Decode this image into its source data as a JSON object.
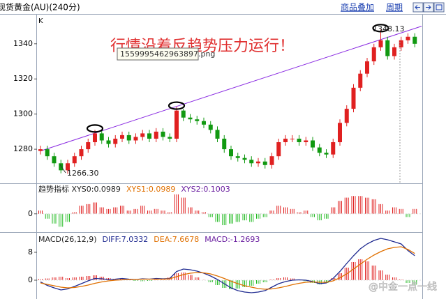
{
  "header": {
    "title": "现货黄金(AU)(240分)",
    "links": [
      "商品叠加",
      "周期"
    ]
  },
  "chart_data": [
    {
      "type": "candlestick",
      "axis_label": "K",
      "up_color": "#e02020",
      "down_color": "#119911",
      "ylim": [
        1261,
        1355
      ],
      "yticks": [
        1280,
        1300,
        1320,
        1340
      ],
      "open": [
        1279,
        1280,
        1276,
        1272,
        1268,
        1272,
        1276,
        1280,
        1284,
        1289,
        1285,
        1283,
        1286,
        1288,
        1285,
        1287,
        1289,
        1286,
        1290,
        1287,
        1286,
        1302,
        1298,
        1297,
        1296,
        1294,
        1291,
        1286,
        1280,
        1276,
        1275,
        1274,
        1272,
        1273,
        1271,
        1276,
        1284,
        1286,
        1286,
        1284,
        1285,
        1281,
        1278,
        1277,
        1284,
        1295,
        1303,
        1315,
        1323,
        1330,
        1338,
        1342,
        1333,
        1338,
        1342,
        1344
      ],
      "close": [
        1280,
        1276,
        1272,
        1268,
        1272,
        1276,
        1280,
        1284,
        1289,
        1285,
        1283,
        1286,
        1288,
        1285,
        1287,
        1289,
        1286,
        1290,
        1287,
        1286,
        1302,
        1298,
        1297,
        1296,
        1294,
        1291,
        1286,
        1280,
        1276,
        1275,
        1274,
        1272,
        1273,
        1271,
        1276,
        1284,
        1286,
        1286,
        1284,
        1285,
        1281,
        1278,
        1277,
        1284,
        1295,
        1303,
        1315,
        1323,
        1330,
        1338,
        1342,
        1333,
        1338,
        1342,
        1344,
        1340
      ],
      "high": [
        1282,
        1282,
        1278,
        1274,
        1274,
        1278,
        1282,
        1286,
        1291,
        1291,
        1287,
        1288,
        1290,
        1290,
        1289,
        1291,
        1291,
        1292,
        1292,
        1289,
        1304,
        1303,
        1300,
        1299,
        1298,
        1296,
        1293,
        1288,
        1282,
        1278,
        1277,
        1276,
        1275,
        1275,
        1278,
        1286,
        1288,
        1288,
        1288,
        1287,
        1287,
        1283,
        1280,
        1286,
        1297,
        1305,
        1317,
        1325,
        1332,
        1340,
        1348.13,
        1344,
        1340,
        1344,
        1346,
        1346
      ],
      "low": [
        1277,
        1274,
        1270,
        1266.3,
        1266,
        1270,
        1274,
        1278,
        1282,
        1283,
        1281,
        1281,
        1284,
        1283,
        1283,
        1285,
        1284,
        1284,
        1285,
        1284,
        1284,
        1296,
        1295,
        1294,
        1292,
        1289,
        1284,
        1278,
        1274,
        1273,
        1272,
        1270,
        1270,
        1269,
        1269,
        1274,
        1282,
        1284,
        1282,
        1282,
        1279,
        1276,
        1275,
        1275,
        1282,
        1293,
        1301,
        1313,
        1321,
        1328,
        1336,
        1331,
        1331,
        1336,
        1340,
        1338
      ],
      "trendline": {
        "start": [
          0,
          1279
        ],
        "end": [
          56,
          1350
        ]
      },
      "trendline_color": "#8a2be2",
      "highlights": [
        8,
        20,
        50
      ],
      "annotations": [
        {
          "text": "行情沿着反趋势压力运行！",
          "color": "#e03030"
        },
        {
          "text": "1559995462963897.png",
          "color": "#333333"
        },
        {
          "text": "1348.13",
          "color": "#222222"
        },
        {
          "text": "1266.30",
          "color": "#222222"
        }
      ]
    },
    {
      "type": "bar",
      "up_color": "#e02020",
      "down_color": "#22bb22",
      "ylim": [
        -0.1,
        0.18
      ],
      "yticks": [
        0
      ],
      "legend": [
        {
          "text": "趋势指标 XYS0:0.0989",
          "color": "#222222"
        },
        {
          "text": "XYS1:0.0989",
          "color": "#e07000"
        },
        {
          "text": "XYS2:0.1003",
          "color": "#6a1fa0"
        }
      ],
      "values": [
        0.02,
        -0.03,
        -0.06,
        -0.08,
        -0.05,
        0.01,
        0.05,
        0.06,
        0.07,
        0.04,
        0.03,
        0.04,
        0.05,
        0.02,
        0.03,
        0.05,
        0.02,
        0.03,
        0.02,
        0.01,
        0.12,
        0.1,
        0.04,
        0.02,
        0.01,
        -0.02,
        -0.05,
        -0.07,
        -0.06,
        -0.05,
        -0.04,
        -0.05,
        -0.03,
        -0.02,
        0.02,
        0.05,
        0.04,
        0.03,
        0.01,
        0.02,
        -0.02,
        -0.04,
        -0.03,
        0.04,
        0.08,
        0.1,
        0.11,
        0.11,
        0.1,
        0.09,
        0.06,
        0.02,
        0.04,
        0.03,
        -0.02,
        0.03
      ]
    },
    {
      "type": "macd",
      "up_color": "#e02020",
      "down_color": "#22bb22",
      "ylim": [
        -4.6,
        12.8
      ],
      "yticks": [
        0,
        8
      ],
      "legend": [
        {
          "text": "MACD(26,12,9)",
          "color": "#222222"
        },
        {
          "text": "DIFF:7.0332",
          "color": "#1f2a90"
        },
        {
          "text": "DEA:7.6678",
          "color": "#e07000"
        },
        {
          "text": "MACD:-1.2693",
          "color": "#6a1fa0"
        }
      ],
      "values": [
        0.3,
        0.5,
        0.8,
        1.0,
        0.6,
        0.8,
        1.0,
        1.2,
        1.4,
        1.0,
        0.6,
        0.4,
        0.5,
        0.3,
        -0.2,
        -0.3,
        -0.2,
        0.3,
        0.4,
        0.8,
        2.0,
        2.2,
        1.5,
        0.8,
        0.1,
        -0.6,
        -1.4,
        -2.2,
        -2.6,
        -2.4,
        -2.0,
        -1.6,
        -1.0,
        -0.6,
        0.2,
        0.6,
        0.8,
        0.5,
        0.2,
        -0.3,
        -0.8,
        -1.2,
        -0.8,
        0.6,
        2.0,
        3.6,
        5.2,
        6.0,
        5.4,
        4.2,
        2.8,
        1.6,
        0.8,
        0.2,
        -0.8,
        -1.27
      ],
      "series": [
        {
          "name": "DIFF",
          "color": "#1f2a90",
          "values": [
            -0.5,
            -1.5,
            -2.2,
            -2.8,
            -2.5,
            -1.8,
            -1.0,
            -0.2,
            0.5,
            0.4,
            0.2,
            0.3,
            0.5,
            0.3,
            0.2,
            0.4,
            0.3,
            0.5,
            0.4,
            0.5,
            2.5,
            3.2,
            3.0,
            2.6,
            2.0,
            1.2,
            0.2,
            -1.0,
            -2.2,
            -3.0,
            -3.4,
            -3.6,
            -3.4,
            -3.0,
            -2.0,
            -1.0,
            -0.4,
            0.0,
            0.1,
            0.0,
            -0.4,
            -1.0,
            -0.8,
            0.5,
            2.5,
            4.8,
            7.0,
            9.0,
            10.4,
            11.4,
            12.0,
            11.6,
            11.0,
            10.4,
            8.5,
            7.03
          ]
        },
        {
          "name": "DEA",
          "color": "#e07000",
          "values": [
            -0.8,
            -1.2,
            -1.6,
            -2.0,
            -2.2,
            -2.1,
            -1.8,
            -1.4,
            -0.9,
            -0.5,
            -0.2,
            0.0,
            0.1,
            0.2,
            0.2,
            0.3,
            0.3,
            0.3,
            0.3,
            0.4,
            1.0,
            1.6,
            2.0,
            2.2,
            2.1,
            1.8,
            1.2,
            0.5,
            -0.3,
            -1.0,
            -1.6,
            -2.0,
            -2.4,
            -2.6,
            -2.5,
            -2.2,
            -1.8,
            -1.3,
            -0.9,
            -0.6,
            -0.5,
            -0.6,
            -0.6,
            -0.2,
            0.7,
            1.8,
            3.2,
            4.6,
            6.0,
            7.2,
            8.2,
            9.0,
            9.4,
            9.6,
            8.8,
            7.67
          ]
        }
      ]
    }
  ],
  "watermark": "@中金一点一线"
}
